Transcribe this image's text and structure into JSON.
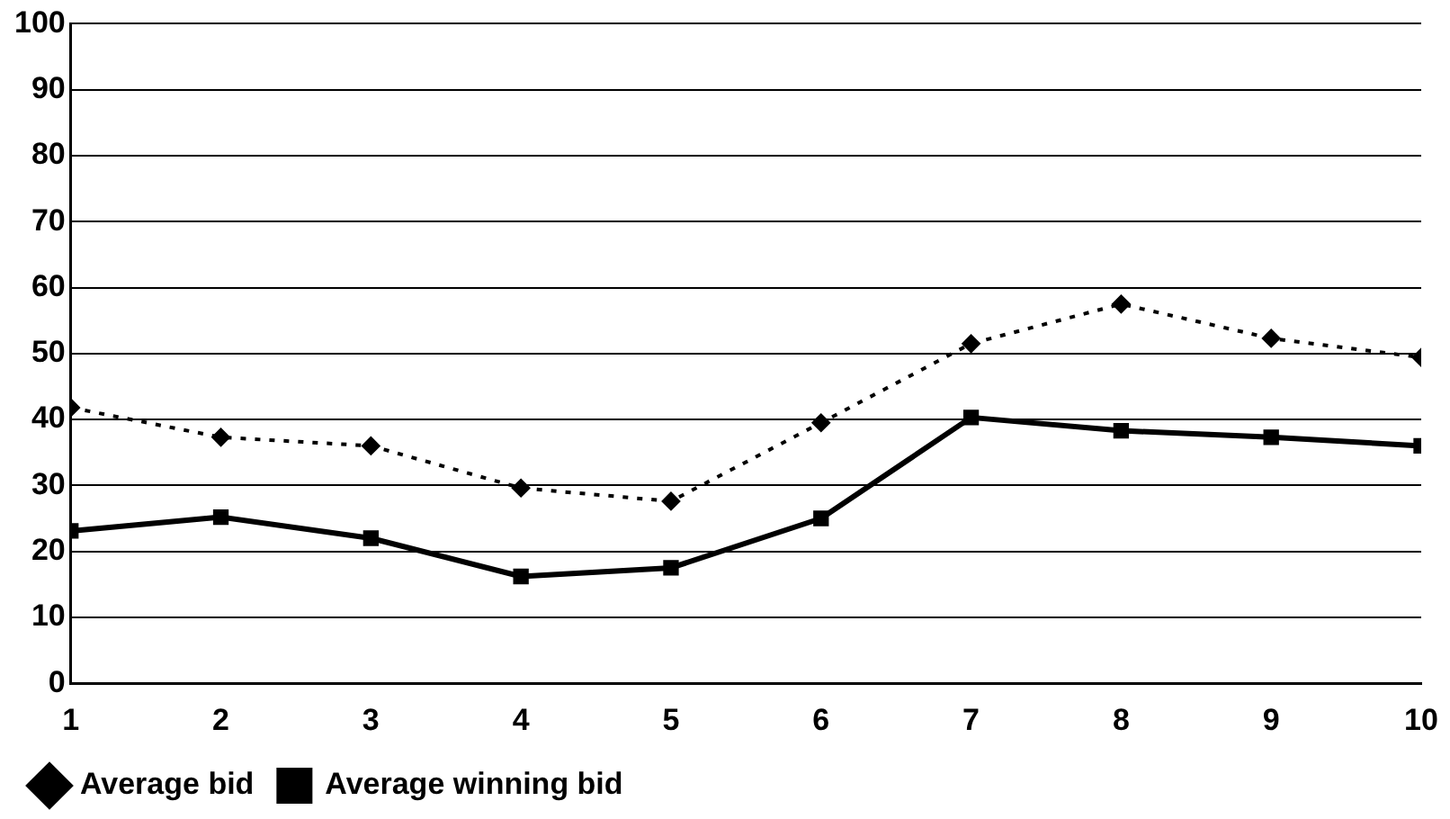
{
  "chart_data": {
    "type": "line",
    "x": [
      1,
      2,
      3,
      4,
      5,
      6,
      7,
      8,
      9,
      10
    ],
    "xlim": [
      1,
      10
    ],
    "xticks": [
      1,
      2,
      3,
      4,
      5,
      6,
      7,
      8,
      9,
      10
    ],
    "ylim": [
      0,
      100
    ],
    "yticks": [
      0,
      10,
      20,
      30,
      40,
      50,
      60,
      70,
      80,
      90,
      100
    ],
    "grid": "y",
    "legend": "bottom left",
    "series": [
      {
        "name": "Average bid",
        "color": "#000000",
        "line_style": "dotted",
        "marker": "diamond",
        "values": [
          41.8,
          37.3,
          36,
          29.6,
          27.6,
          39.5,
          51.5,
          57.5,
          52.3,
          49.4
        ]
      },
      {
        "name": "Average winning bid",
        "color": "#000000",
        "line_style": "solid",
        "marker": "square",
        "values": [
          23.1,
          25.2,
          22,
          16.2,
          17.5,
          25,
          40.3,
          38.3,
          37.3,
          36
        ]
      }
    ]
  }
}
